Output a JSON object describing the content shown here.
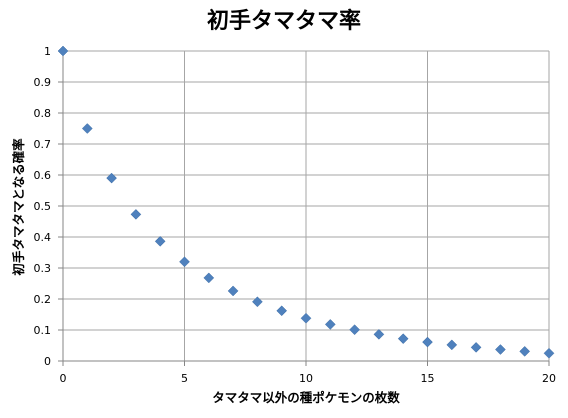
{
  "chart_data": {
    "type": "scatter",
    "title": "初手タマタマ率",
    "xlabel": "タマタマ以外の種ポケモンの枚数",
    "ylabel": "初手タマタマとなる確率",
    "xlim": [
      0,
      20
    ],
    "ylim": [
      0,
      1
    ],
    "x_ticks": [
      0,
      5,
      10,
      15,
      20
    ],
    "y_ticks": [
      0,
      0.1,
      0.2,
      0.3,
      0.4,
      0.5,
      0.6,
      0.7,
      0.8,
      0.9,
      1
    ],
    "grid": {
      "horizontal": true,
      "vertical": true
    },
    "legend": "none",
    "marker": "diamond",
    "colors": {
      "marker": "#4f81bd",
      "grid": "#a6a6a6",
      "axis": "#868686",
      "text": "#000000"
    },
    "series": [
      {
        "x": [
          0,
          1,
          2,
          3,
          4,
          5,
          6,
          7,
          8,
          9,
          10,
          11,
          12,
          13,
          14,
          15,
          16,
          17,
          18,
          19,
          20
        ],
        "y": [
          1.0,
          0.75,
          0.59,
          0.473,
          0.386,
          0.32,
          0.268,
          0.226,
          0.191,
          0.162,
          0.138,
          0.118,
          0.101,
          0.086,
          0.072,
          0.061,
          0.052,
          0.044,
          0.037,
          0.031,
          0.025
        ]
      }
    ]
  }
}
